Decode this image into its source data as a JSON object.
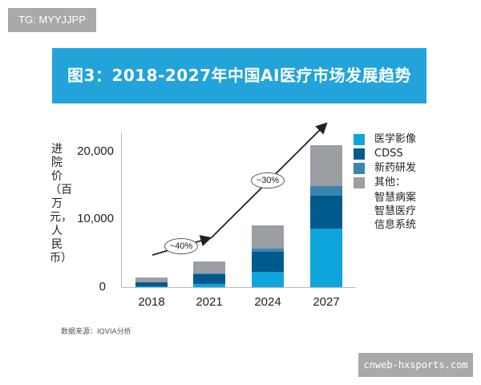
{
  "watermark_top": "TG: MYYJJPP",
  "watermark_bottom": "cnweb-hxsports.com",
  "banner": {
    "title": "图3：2018-2027年中国AI医疗市场发展趋势",
    "color": "#22a3da"
  },
  "axis": {
    "ylabel": "进院价（百万元，人民币）",
    "yticks": [
      "20,000",
      "10,000",
      "0"
    ],
    "xticks": [
      "2018",
      "2021",
      "2024",
      "2027"
    ]
  },
  "annotations": {
    "cagr_1": "~40%",
    "cagr_2": "~30%"
  },
  "legend": {
    "items": [
      {
        "label": "医学影像",
        "color": "#0ea5dc"
      },
      {
        "label": "CDSS",
        "color": "#005a8c"
      },
      {
        "label": "新药研发",
        "color": "#3b84ad"
      },
      {
        "label": "其他：",
        "color": "#9b9ea2"
      }
    ],
    "sub_lines": [
      "智慧病案",
      "智慧医疗",
      "信息系统"
    ]
  },
  "source": "数据来源：IQVIA分析",
  "chart_data": {
    "type": "bar",
    "stacked": true,
    "title": "图3：2018-2027年中国AI医疗市场发展趋势",
    "xlabel": "",
    "ylabel": "进院价（百万元，人民币）",
    "ylim": [
      0,
      22000
    ],
    "yticks": [
      0,
      10000,
      20000
    ],
    "categories": [
      "2018",
      "2021",
      "2024",
      "2027"
    ],
    "series": [
      {
        "name": "医学影像",
        "values": [
          100,
          500,
          2200,
          8600
        ]
      },
      {
        "name": "CDSS",
        "values": [
          600,
          1400,
          3000,
          4900
        ]
      },
      {
        "name": "新药研发",
        "values": [
          0,
          100,
          500,
          1400
        ]
      },
      {
        "name": "其他：智慧病案 智慧医疗 信息系统",
        "values": [
          700,
          1800,
          3400,
          6100
        ]
      }
    ],
    "totals_approx": [
      1400,
      3800,
      9100,
      21000
    ],
    "annotations": [
      {
        "text": "~40%",
        "span": "2018-2021"
      },
      {
        "text": "~30%",
        "span": "2021-2027"
      }
    ],
    "legend_position": "right",
    "grid": false
  }
}
